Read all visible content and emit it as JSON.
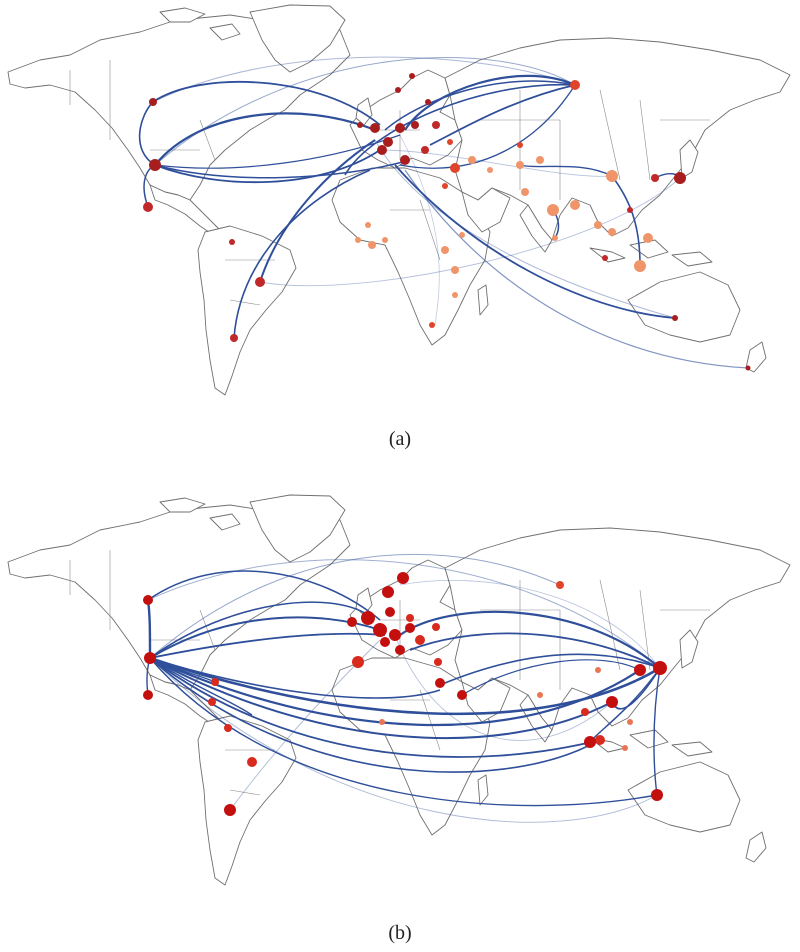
{
  "figure": {
    "panels": [
      {
        "id": "a",
        "caption": "(a)"
      },
      {
        "id": "b",
        "caption": "(b)"
      }
    ]
  },
  "colors": {
    "land_fill": "#ffffff",
    "coast_stroke": "#6f6f6f",
    "link": "#2f4f9a",
    "node_dark": "#a81e1e",
    "node_mid": "#e0452c",
    "node_light": "#f0956a"
  }
}
